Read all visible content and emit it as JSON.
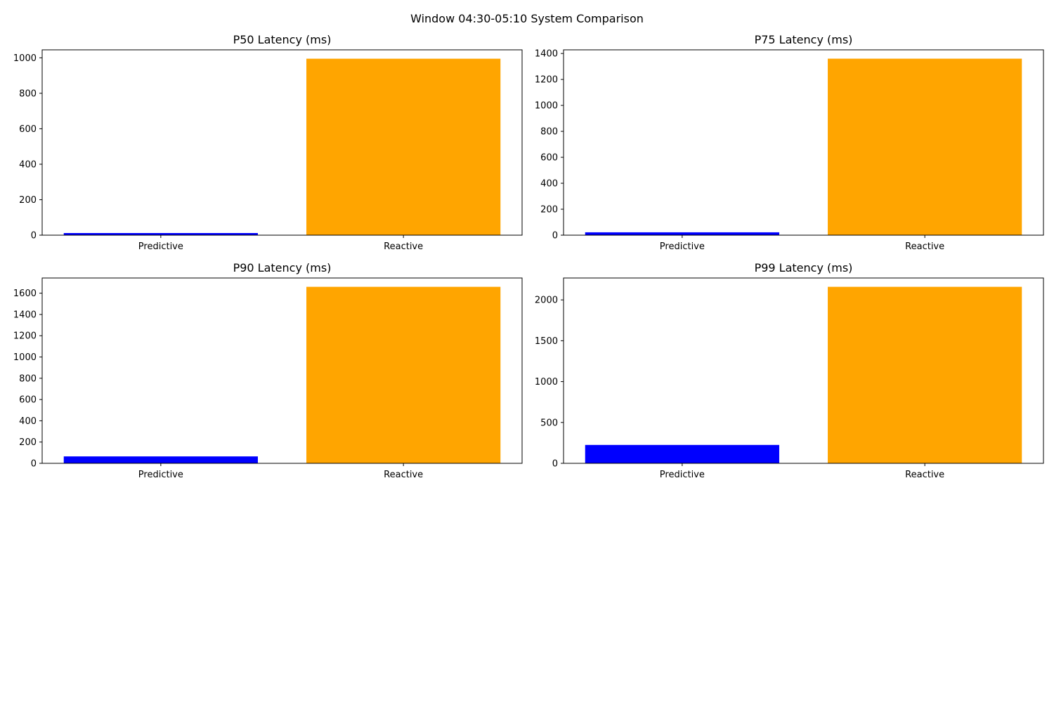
{
  "figure": {
    "suptitle": "Window 04:30-05:10 System Comparison"
  },
  "chart_data": [
    {
      "type": "bar",
      "title": "P50 Latency (ms)",
      "categories": [
        "Predictive",
        "Reactive"
      ],
      "values": [
        12,
        995
      ],
      "colors": [
        "#0000ff",
        "#ffa500"
      ],
      "ylim": [
        0,
        1045
      ],
      "yticks": [
        0,
        200,
        400,
        600,
        800,
        1000
      ],
      "xlabel": "",
      "ylabel": "",
      "grid": false
    },
    {
      "type": "bar",
      "title": "P75 Latency (ms)",
      "categories": [
        "Predictive",
        "Reactive"
      ],
      "values": [
        22,
        1360
      ],
      "colors": [
        "#0000ff",
        "#ffa500"
      ],
      "ylim": [
        0,
        1428
      ],
      "yticks": [
        0,
        200,
        400,
        600,
        800,
        1000,
        1200,
        1400
      ],
      "xlabel": "",
      "ylabel": "",
      "grid": false
    },
    {
      "type": "bar",
      "title": "P90 Latency (ms)",
      "categories": [
        "Predictive",
        "Reactive"
      ],
      "values": [
        65,
        1660
      ],
      "colors": [
        "#0000ff",
        "#ffa500"
      ],
      "ylim": [
        0,
        1743
      ],
      "yticks": [
        0,
        200,
        400,
        600,
        800,
        1000,
        1200,
        1400,
        1600
      ],
      "xlabel": "",
      "ylabel": "",
      "grid": false
    },
    {
      "type": "bar",
      "title": "P99 Latency (ms)",
      "categories": [
        "Predictive",
        "Reactive"
      ],
      "values": [
        225,
        2160
      ],
      "colors": [
        "#0000ff",
        "#ffa500"
      ],
      "ylim": [
        0,
        2268
      ],
      "yticks": [
        0,
        500,
        1000,
        1500,
        2000
      ],
      "xlabel": "",
      "ylabel": "",
      "grid": false
    }
  ]
}
